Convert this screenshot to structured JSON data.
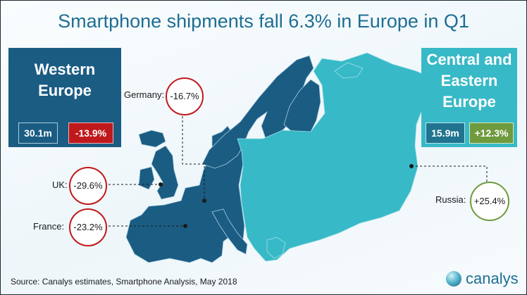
{
  "title": "Smartphone shipments fall 6.3% in Europe in Q1",
  "colors": {
    "western": "#1b5c83",
    "eastern": "#38b9c7",
    "negative": "#c0191c",
    "positive": "#6f9a3e",
    "title": "#1e6e93"
  },
  "regions": {
    "western": {
      "title": "Western Europe",
      "volume": "30.1m",
      "change": "-13.9%"
    },
    "eastern": {
      "title": "Central and Eastern Europe",
      "volume": "15.9m",
      "change": "+12.3%"
    }
  },
  "callouts": {
    "germany": {
      "label": "Germany:",
      "value": "-16.7%"
    },
    "uk": {
      "label": "UK:",
      "value": "-29.6%"
    },
    "france": {
      "label": "France:",
      "value": "-23.2%"
    },
    "russia": {
      "label": "Russia:",
      "value": "+25.4%"
    }
  },
  "source": "Source: Canalys estimates, Smartphone Analysis, May 2018",
  "logo": {
    "text": "canalys",
    "icon": "globe-icon"
  }
}
